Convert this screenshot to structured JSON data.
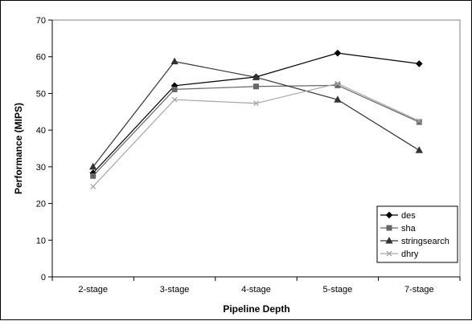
{
  "chart_data": {
    "type": "line",
    "title": "",
    "xlabel": "Pipeline Depth",
    "ylabel": "Performance (MIPS)",
    "categories": [
      "2-stage",
      "3-stage",
      "4-stage",
      "5-stage",
      "7-stage"
    ],
    "ylim": [
      0,
      70
    ],
    "yticks": [
      0,
      10,
      20,
      30,
      40,
      50,
      60,
      70
    ],
    "grid": false,
    "legend_position": "bottom-right",
    "series": [
      {
        "name": "des",
        "values": [
          28.3,
          52.1,
          54.5,
          61.0,
          58.1
        ],
        "color": "#000000",
        "marker": "diamond"
      },
      {
        "name": "sha",
        "values": [
          27.5,
          51.1,
          51.9,
          52.2,
          42.2
        ],
        "color": "#666666",
        "marker": "square"
      },
      {
        "name": "stringsearch",
        "values": [
          30.0,
          58.7,
          54.4,
          48.3,
          34.5
        ],
        "color": "#333333",
        "marker": "triangle"
      },
      {
        "name": "dhry",
        "values": [
          24.6,
          48.3,
          47.3,
          52.7,
          42.5
        ],
        "color": "#a6a6a6",
        "marker": "x"
      }
    ]
  }
}
